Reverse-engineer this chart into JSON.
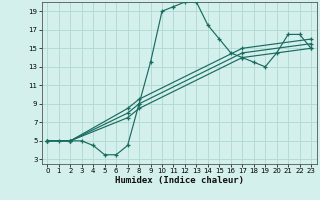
{
  "xlabel": "Humidex (Indice chaleur)",
  "bg_color": "#d4f0ec",
  "line_color": "#1a6b60",
  "grid_color": "#aed8d0",
  "xlim": [
    -0.5,
    23.5
  ],
  "ylim": [
    2.5,
    20.0
  ],
  "xticks": [
    0,
    1,
    2,
    3,
    4,
    5,
    6,
    7,
    8,
    9,
    10,
    11,
    12,
    13,
    14,
    15,
    16,
    17,
    18,
    19,
    20,
    21,
    22,
    23
  ],
  "yticks": [
    3,
    5,
    7,
    9,
    11,
    13,
    15,
    17,
    19
  ],
  "curve1_x": [
    0,
    1,
    2,
    3,
    4,
    5,
    6,
    7,
    8,
    9,
    10,
    11,
    12,
    13,
    14,
    15,
    16,
    17,
    18,
    19,
    20,
    21,
    22,
    23
  ],
  "curve1_y": [
    5,
    5,
    5,
    5,
    4.5,
    3.5,
    3.5,
    4.5,
    9,
    13.5,
    19,
    19.5,
    20,
    20,
    17.5,
    16,
    14.5,
    14,
    13.5,
    13,
    14.5,
    16.5,
    16.5,
    15
  ],
  "curve2_x": [
    0,
    2,
    7,
    8,
    17,
    23
  ],
  "curve2_y": [
    5,
    5,
    7.5,
    8.5,
    14,
    15
  ],
  "curve3_x": [
    0,
    2,
    7,
    8,
    17,
    23
  ],
  "curve3_y": [
    5,
    5,
    8,
    9,
    14.5,
    15.5
  ],
  "curve4_x": [
    0,
    2,
    7,
    8,
    17,
    23
  ],
  "curve4_y": [
    5,
    5,
    8.5,
    9.5,
    15,
    16
  ]
}
